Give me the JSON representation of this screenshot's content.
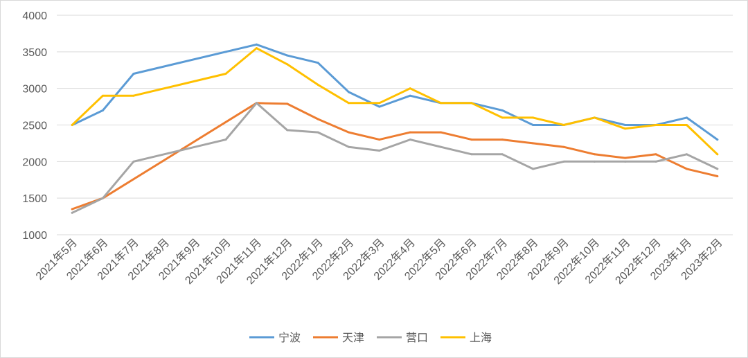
{
  "chart_data": {
    "type": "line",
    "title": "",
    "xlabel": "",
    "ylabel": "",
    "ylim": [
      1000,
      4000
    ],
    "yticks": [
      "1000",
      "1500",
      "2000",
      "2500",
      "3000",
      "3500",
      "4000"
    ],
    "grid": "horizontal",
    "legend_position": "bottom",
    "categories": [
      "2021年5月",
      "2021年6月",
      "2021年7月",
      "2021年8月",
      "2021年9月",
      "2021年10月",
      "2021年11月",
      "2021年12月",
      "2022年1月",
      "2022年2月",
      "2022年3月",
      "2022年4月",
      "2022年5月",
      "2022年6月",
      "2022年7月",
      "2022年8月",
      "2022年9月",
      "2022年10月",
      "2022年11月",
      "2022年12月",
      "2023年1月",
      "2023年2月"
    ],
    "series": [
      {
        "name": "宁波",
        "color": "#5B9BD5",
        "values": [
          2500,
          2700,
          3200,
          null,
          null,
          3500,
          3600,
          3450,
          3350,
          2950,
          2750,
          2900,
          2800,
          2800,
          2700,
          2500,
          2500,
          2600,
          2500,
          2500,
          2600,
          2300
        ]
      },
      {
        "name": "天津",
        "color": "#ED7D31",
        "values": [
          1350,
          1500,
          null,
          null,
          null,
          null,
          2800,
          2790,
          2580,
          2400,
          2300,
          2400,
          2400,
          2300,
          2300,
          2250,
          2200,
          2100,
          2050,
          2100,
          1900,
          1800
        ]
      },
      {
        "name": "营口",
        "color": "#A5A5A5",
        "values": [
          1300,
          1500,
          2000,
          null,
          null,
          2300,
          2800,
          2430,
          2400,
          2200,
          2150,
          2300,
          2200,
          2100,
          2100,
          1900,
          2000,
          2000,
          2000,
          2000,
          2100,
          1900
        ]
      },
      {
        "name": "上海",
        "color": "#FFC000",
        "values": [
          2500,
          2900,
          2900,
          null,
          null,
          3200,
          3550,
          3330,
          3050,
          2800,
          2800,
          3000,
          2800,
          2800,
          2600,
          2600,
          2500,
          2600,
          2450,
          2500,
          2500,
          2100
        ]
      }
    ]
  }
}
